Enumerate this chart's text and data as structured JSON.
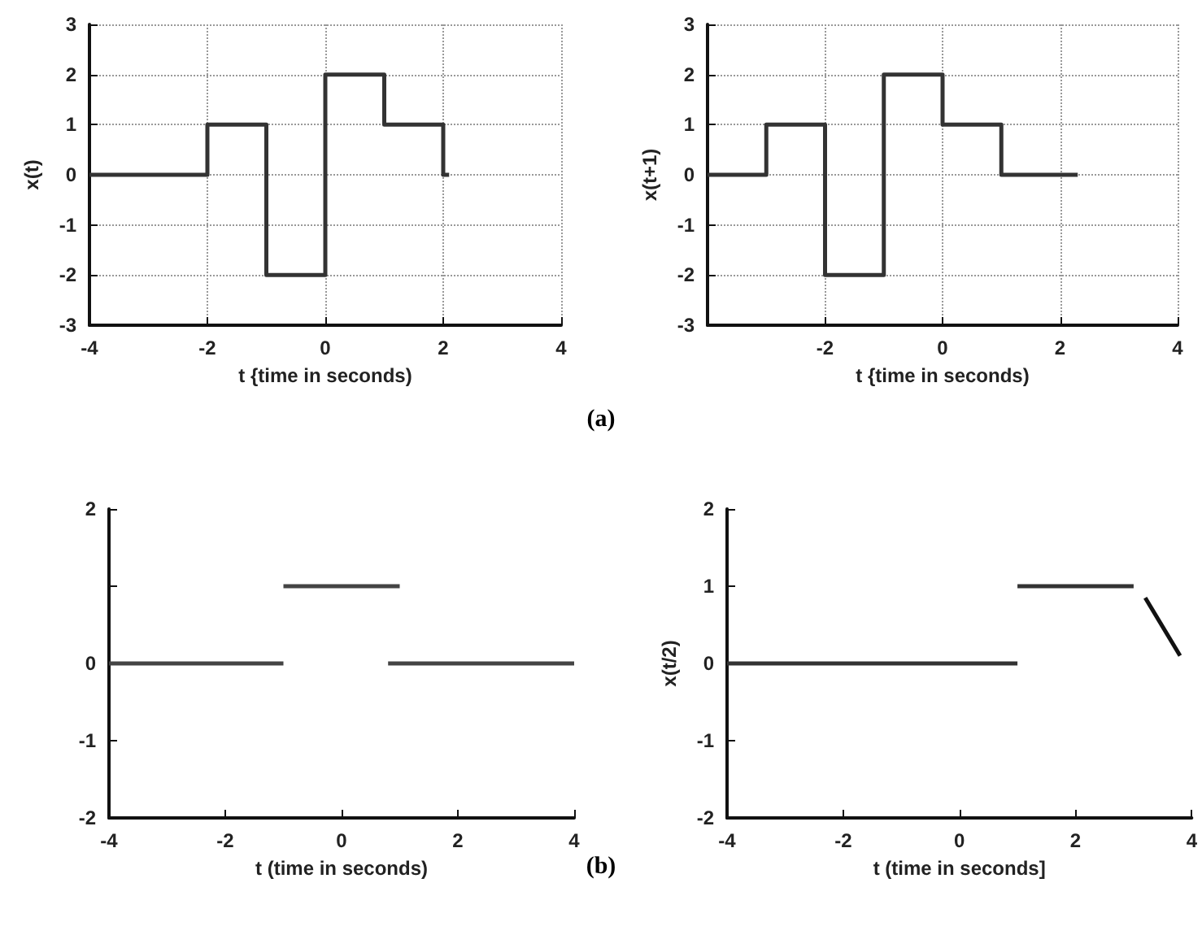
{
  "chart_data": [
    {
      "type": "line",
      "xlabel": "t {time in seconds)",
      "ylabel": "x(t)",
      "xlim": [
        -4,
        4
      ],
      "ylim": [
        -3,
        3
      ],
      "xticks": [
        -4,
        -2,
        0,
        2,
        4
      ],
      "yticks": [
        -3,
        -2,
        -1,
        0,
        1,
        2,
        3
      ],
      "grid": true,
      "marker": "none",
      "line_style": "solid",
      "series": [
        {
          "color": "#333333",
          "x": [
            -4,
            -2,
            -2,
            -1,
            -1,
            0,
            0,
            1,
            1,
            2,
            2,
            2.1
          ],
          "values": [
            0,
            0,
            1,
            1,
            -2,
            -2,
            2,
            2,
            1,
            1,
            0,
            0
          ]
        }
      ],
      "annotations": [
        "(a)"
      ]
    },
    {
      "type": "line",
      "xlabel": "t {time in seconds)",
      "ylabel": "x(t+1)",
      "xlim": [
        -4,
        4
      ],
      "ylim": [
        -3,
        3
      ],
      "xticks": [
        {
          "value": -4,
          "label": null
        },
        -2,
        0,
        2,
        4
      ],
      "yticks": [
        -3,
        -2,
        -1,
        0,
        1,
        2,
        3
      ],
      "grid": true,
      "marker": "none",
      "line_style": "solid",
      "series": [
        {
          "color": "#333333",
          "x": [
            -4,
            -3,
            -3,
            -2,
            -2,
            -1,
            -1,
            0,
            0,
            1,
            1,
            2.3
          ],
          "values": [
            0,
            0,
            1,
            1,
            -2,
            -2,
            2,
            2,
            1,
            1,
            0,
            0
          ]
        }
      ]
    },
    {
      "type": "line",
      "xlabel": "t (time in seconds)",
      "xlim": [
        -4,
        4
      ],
      "ylim": [
        -2,
        2
      ],
      "xticks": [
        -4,
        -2,
        0,
        2,
        4
      ],
      "yticks": [
        -2,
        -1,
        0,
        {
          "value": 1,
          "label": null
        },
        2
      ],
      "marker": "none",
      "line_style": "solid",
      "series": [
        {
          "color": "#444444",
          "x": [
            -4,
            -1
          ],
          "values": [
            0,
            0
          ]
        },
        {
          "color": "#444444",
          "x": [
            -1,
            1
          ],
          "values": [
            1,
            1
          ]
        },
        {
          "color": "#444444",
          "x": [
            0.8,
            4
          ],
          "values": [
            0,
            0
          ]
        }
      ],
      "annotations": [
        "(b)"
      ]
    },
    {
      "type": "line",
      "xlabel": "t (time in seconds]",
      "ylabel": "x(t/2)",
      "xlim": [
        -4,
        4
      ],
      "ylim": [
        -2,
        2
      ],
      "xticks": [
        -4,
        -2,
        0,
        2,
        4
      ],
      "yticks": [
        -2,
        -1,
        0,
        1,
        2
      ],
      "marker": "none",
      "line_style": "solid",
      "series": [
        {
          "color": "#333333",
          "x": [
            -4,
            1
          ],
          "values": [
            0,
            0
          ]
        },
        {
          "color": "#333333",
          "x": [
            1,
            3
          ],
          "values": [
            1,
            1
          ]
        },
        {
          "color": "#111111",
          "x": [
            3.2,
            3.8
          ],
          "values": [
            0.85,
            0.1
          ]
        }
      ]
    }
  ]
}
